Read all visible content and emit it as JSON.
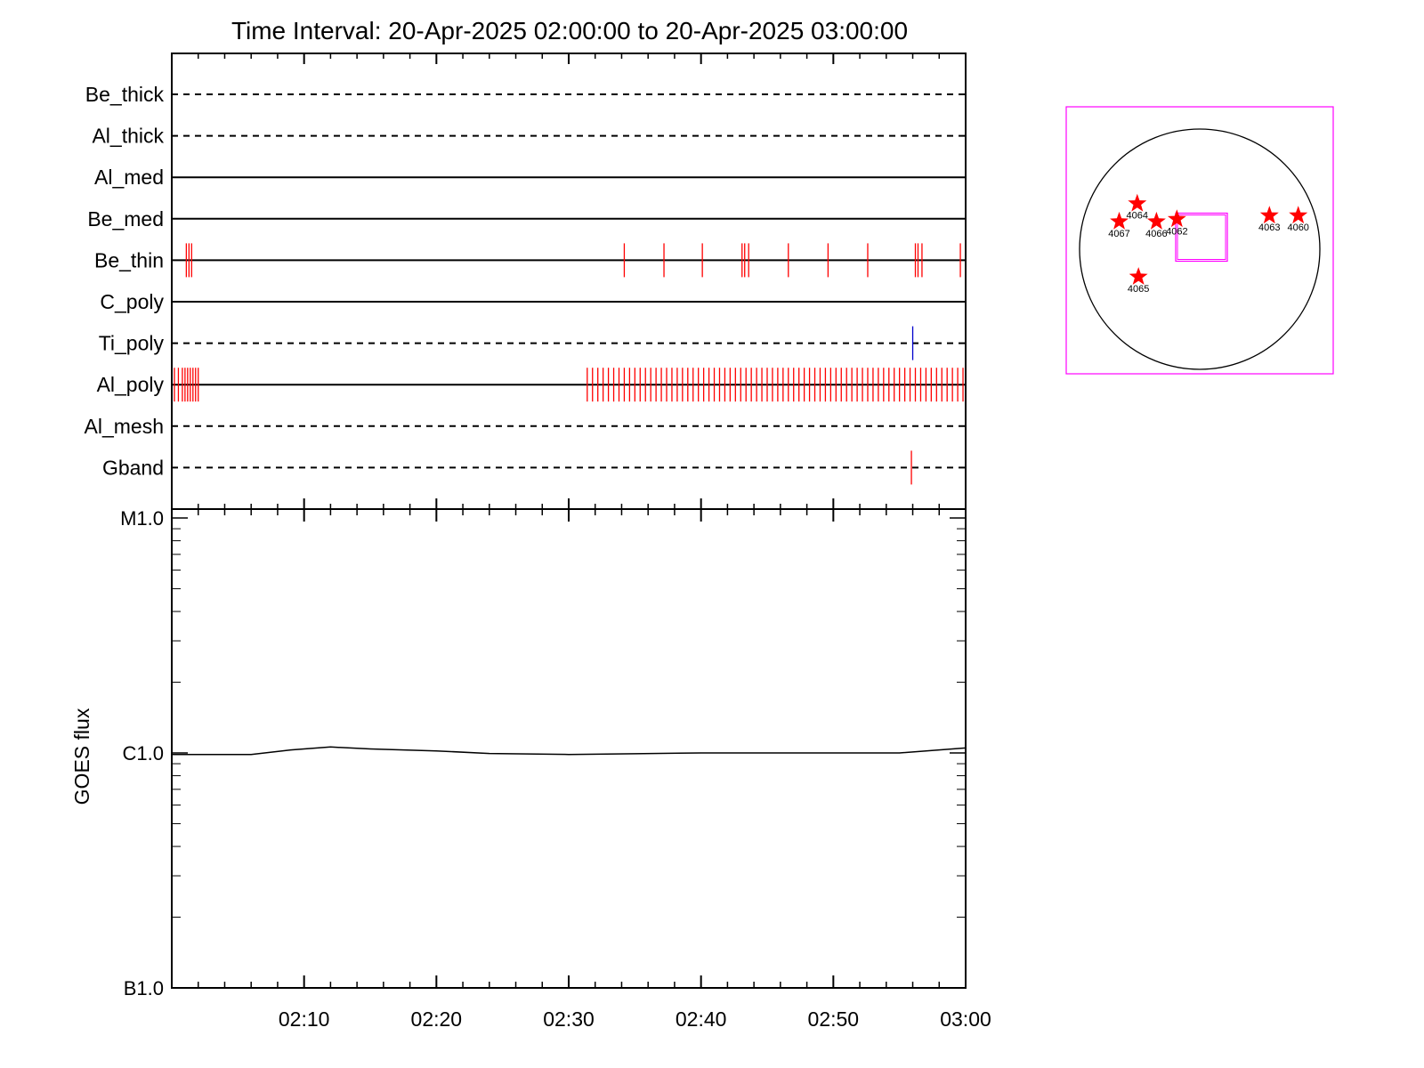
{
  "colors": {
    "axis": "#000000",
    "event_red": "#ff0000",
    "event_blue": "#0000cc",
    "locator_frame": "#ff00ff",
    "star": "#ff0000"
  },
  "chart_data": [
    {
      "type": "timeline",
      "title": "Time Interval: 20-Apr-2025 02:00:00 to 20-Apr-2025 03:00:00",
      "x_unit": "minutes after 02:00",
      "xlim": [
        0,
        60
      ],
      "channels": [
        {
          "name": "Be_thick",
          "line": "dashed",
          "events_red": [],
          "events_blue": []
        },
        {
          "name": "Al_thick",
          "line": "dashed",
          "events_red": [],
          "events_blue": []
        },
        {
          "name": "Al_med",
          "line": "solid",
          "events_red": [],
          "events_blue": []
        },
        {
          "name": "Be_med",
          "line": "solid",
          "events_red": [],
          "events_blue": []
        },
        {
          "name": "Be_thin",
          "line": "solid",
          "events_red": [
            1.1,
            1.3,
            1.5,
            34.2,
            37.2,
            40.1,
            43.1,
            43.3,
            43.6,
            46.6,
            49.6,
            52.6,
            56.2,
            56.4,
            56.7,
            59.6
          ],
          "events_blue": []
        },
        {
          "name": "C_poly",
          "line": "solid",
          "events_red": [],
          "events_blue": []
        },
        {
          "name": "Ti_poly",
          "line": "dashed",
          "events_red": [],
          "events_blue": [
            56.0
          ]
        },
        {
          "name": "Al_poly",
          "line": "solid",
          "events_red": [
            0.2,
            0.5,
            0.8,
            1.0,
            1.2,
            1.4,
            1.6,
            1.8,
            2.0,
            31.4,
            31.8,
            32.2,
            32.6,
            33.0,
            33.4,
            33.8,
            34.2,
            34.6,
            35.0,
            35.4,
            35.8,
            36.2,
            36.6,
            37.0,
            37.4,
            37.8,
            38.2,
            38.6,
            39.0,
            39.4,
            39.8,
            40.2,
            40.6,
            41.0,
            41.4,
            41.8,
            42.2,
            42.6,
            43.0,
            43.4,
            43.8,
            44.2,
            44.6,
            45.0,
            45.4,
            45.8,
            46.2,
            46.6,
            47.0,
            47.4,
            47.8,
            48.2,
            48.6,
            49.0,
            49.4,
            49.8,
            50.2,
            50.6,
            51.0,
            51.4,
            51.8,
            52.2,
            52.6,
            53.0,
            53.4,
            53.8,
            54.2,
            54.6,
            55.0,
            55.4,
            55.8,
            56.2,
            56.6,
            57.0,
            57.4,
            57.8,
            58.2,
            58.6,
            59.0,
            59.4,
            59.8
          ],
          "events_blue": []
        },
        {
          "name": "Al_mesh",
          "line": "dashed",
          "events_red": [],
          "events_blue": []
        },
        {
          "name": "Gband",
          "line": "dashed",
          "events_red": [
            55.9
          ],
          "events_blue": []
        }
      ]
    },
    {
      "type": "line",
      "ylabel": "GOES flux",
      "y_scale": "log",
      "ylim": [
        1e-07,
        1e-05
      ],
      "y_ticks": [
        {
          "label": "M1.0",
          "value": 1e-05
        },
        {
          "label": "C1.0",
          "value": 1e-06
        },
        {
          "label": "B1.0",
          "value": 1e-07
        }
      ],
      "x_unit": "minutes after 02:00",
      "xlim": [
        0,
        60
      ],
      "x_ticks": [
        {
          "label": "02:10",
          "value": 10
        },
        {
          "label": "02:20",
          "value": 20
        },
        {
          "label": "02:30",
          "value": 30
        },
        {
          "label": "02:40",
          "value": 40
        },
        {
          "label": "02:50",
          "value": 50
        },
        {
          "label": "03:00",
          "value": 60
        }
      ],
      "series": [
        {
          "x": [
            0,
            6,
            9,
            12,
            15,
            20,
            24,
            30,
            35,
            40,
            45,
            50,
            55,
            58,
            60
          ],
          "y": [
            9.85e-07,
            9.85e-07,
            1.03e-06,
            1.06e-06,
            1.04e-06,
            1.02e-06,
            9.95e-07,
            9.85e-07,
            9.92e-07,
            1e-06,
            1e-06,
            1e-06,
            1e-06,
            1.03e-06,
            1.05e-06
          ]
        }
      ]
    },
    {
      "type": "scatter",
      "ylim": [
        -1,
        1
      ],
      "xlim": [
        -1,
        1
      ],
      "points": [
        {
          "label": "4064",
          "x": -0.52,
          "y": 0.38
        },
        {
          "label": "4067",
          "x": -0.67,
          "y": 0.23
        },
        {
          "label": "4066",
          "x": -0.36,
          "y": 0.23
        },
        {
          "label": "4062",
          "x": -0.19,
          "y": 0.25
        },
        {
          "label": "4063",
          "x": 0.58,
          "y": 0.28
        },
        {
          "label": "4060",
          "x": 0.82,
          "y": 0.28
        },
        {
          "label": "4065",
          "x": -0.51,
          "y": -0.23
        }
      ],
      "fov_box": {
        "x1": -0.2,
        "y1": 0.3,
        "x2": 0.23,
        "y2": -0.1
      }
    }
  ]
}
